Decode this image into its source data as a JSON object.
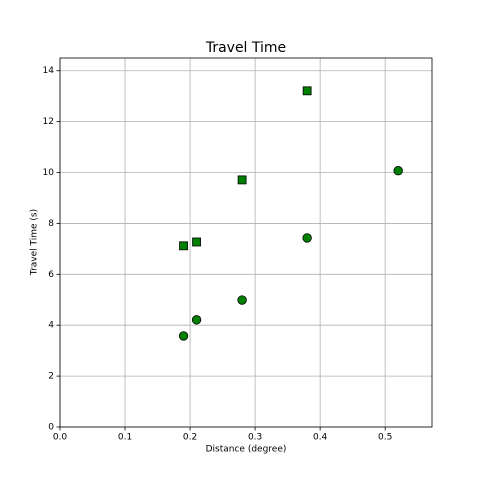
{
  "chart_data": {
    "type": "scatter",
    "title": "Travel Time",
    "x_label": "Distance (degree)",
    "y_label": "Travel Time (s)",
    "xlim": [
      0,
      0.572
    ],
    "ylim": [
      0,
      14.5
    ],
    "xticks": [
      {
        "value": 0,
        "label": "0.0"
      },
      0.1,
      0.2,
      0.3,
      0.4,
      0.5
    ],
    "yticks": [
      0,
      2,
      4,
      6,
      8,
      10,
      12,
      14
    ],
    "grid": true,
    "series": [
      {
        "marker": "circle",
        "color": "#008000",
        "x": [
          0.19,
          0.21,
          0.28,
          0.38,
          0.52
        ],
        "values": [
          3.58,
          4.21,
          4.99,
          7.43,
          10.07
        ]
      },
      {
        "marker": "square",
        "color": "#008000",
        "x": [
          0.19,
          0.21,
          0.28,
          0.38
        ],
        "values": [
          7.12,
          7.27,
          9.71,
          13.21
        ]
      }
    ]
  }
}
